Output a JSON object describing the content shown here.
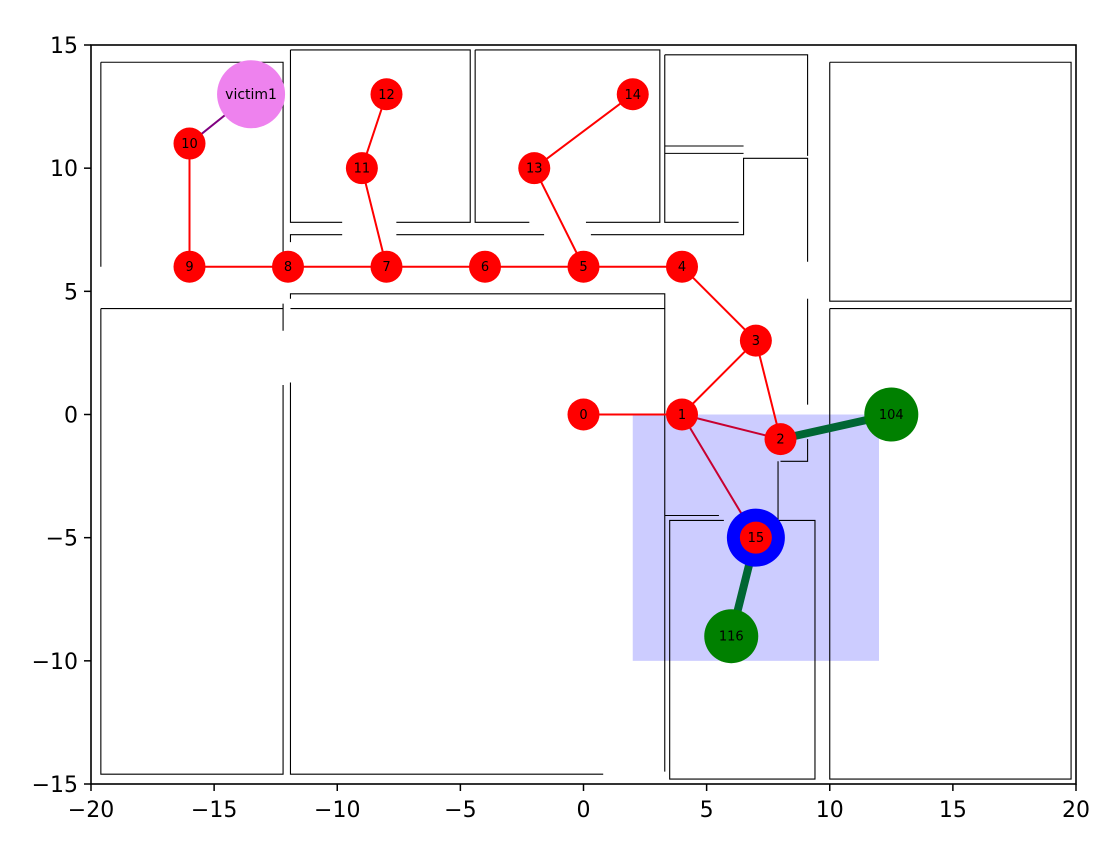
{
  "chart_data": {
    "type": "scatter",
    "title": "",
    "xlabel": "",
    "ylabel": "",
    "xlim": [
      -20,
      20
    ],
    "ylim": [
      -15,
      15
    ],
    "grid": false,
    "x_ticks": [
      -20,
      -15,
      -10,
      -5,
      0,
      5,
      10,
      15,
      20
    ],
    "y_ticks": [
      -15,
      -10,
      -5,
      0,
      5,
      10,
      15
    ],
    "x_tick_labels": [
      "−20",
      "−15",
      "−10",
      "−5",
      "0",
      "5",
      "10",
      "15",
      "20"
    ],
    "y_tick_labels": [
      "−15",
      "−10",
      "−5",
      "0",
      "5",
      "10",
      "15"
    ],
    "highlight_region": {
      "x": [
        2,
        12
      ],
      "y": [
        -10,
        0
      ],
      "color": "#ccccff"
    },
    "walls": [
      [
        [
          -19.6,
          14.3
        ],
        [
          -12.2,
          14.3
        ],
        [
          -12.2,
          6.4
        ]
      ],
      [
        [
          -12.2,
          4.5
        ],
        [
          -12.2,
          3.4
        ]
      ],
      [
        [
          -19.6,
          14.3
        ],
        [
          -19.6,
          6.0
        ]
      ],
      [
        [
          -19.6,
          4.3
        ],
        [
          -12.2,
          4.3
        ]
      ],
      [
        [
          -19.6,
          4.3
        ],
        [
          -19.6,
          -14.6
        ],
        [
          -12.2,
          -14.6
        ],
        [
          -12.2,
          1.2
        ]
      ],
      [
        [
          -11.9,
          14.8
        ],
        [
          -4.6,
          14.8
        ],
        [
          -4.6,
          7.8
        ],
        [
          -7.6,
          7.8
        ]
      ],
      [
        [
          -9.8,
          7.8
        ],
        [
          -11.9,
          7.8
        ],
        [
          -11.9,
          14.8
        ]
      ],
      [
        [
          -11.9,
          7.0
        ],
        [
          -11.9,
          7.3
        ],
        [
          -9.8,
          7.3
        ]
      ],
      [
        [
          -7.6,
          7.3
        ],
        [
          -1.6,
          7.3
        ]
      ],
      [
        [
          -11.9,
          4.7
        ],
        [
          -11.9,
          4.9
        ],
        [
          3.3,
          4.9
        ],
        [
          3.3,
          -14.5
        ]
      ],
      [
        [
          -11.9,
          4.3
        ],
        [
          3.3,
          4.3
        ]
      ],
      [
        [
          -11.9,
          1.3
        ],
        [
          -11.9,
          -14.6
        ],
        [
          0.8,
          -14.6
        ]
      ],
      [
        [
          -4.4,
          14.8
        ],
        [
          3.1,
          14.8
        ],
        [
          3.1,
          7.8
        ],
        [
          0.1,
          7.8
        ]
      ],
      [
        [
          -2.2,
          7.8
        ],
        [
          -4.4,
          7.8
        ],
        [
          -4.4,
          14.8
        ]
      ],
      [
        [
          0.3,
          7.3
        ],
        [
          6.5,
          7.3
        ],
        [
          6.5,
          10.4
        ],
        [
          9.1,
          10.4
        ],
        [
          9.1,
          6.2
        ]
      ],
      [
        [
          3.3,
          14.6
        ],
        [
          9.1,
          14.6
        ],
        [
          9.1,
          10.5
        ]
      ],
      [
        [
          3.3,
          14.6
        ],
        [
          3.3,
          7.8
        ],
        [
          6.3,
          7.8
        ]
      ],
      [
        [
          3.3,
          10.9
        ],
        [
          6.5,
          10.9
        ]
      ],
      [
        [
          3.3,
          10.6
        ],
        [
          6.5,
          10.6
        ]
      ],
      [
        [
          9.1,
          6.6
        ],
        [
          9.1,
          6.6
        ]
      ],
      [
        [
          9.1,
          4.7
        ],
        [
          9.1,
          0.4
        ]
      ],
      [
        [
          8.0,
          -1.9
        ],
        [
          9.1,
          -1.9
        ],
        [
          9.1,
          -1.0
        ]
      ],
      [
        [
          7.9,
          -1.9
        ],
        [
          7.9,
          -4.3
        ],
        [
          9.4,
          -4.3
        ],
        [
          9.4,
          -14.8
        ],
        [
          3.5,
          -14.8
        ],
        [
          3.5,
          -4.3
        ],
        [
          5.7,
          -4.3
        ]
      ],
      [
        [
          3.3,
          -4.1
        ],
        [
          5.5,
          -4.1
        ]
      ],
      [
        [
          10.0,
          14.3
        ],
        [
          19.8,
          14.3
        ],
        [
          19.8,
          4.6
        ],
        [
          10.0,
          4.6
        ],
        [
          10.0,
          14.3
        ]
      ],
      [
        [
          10.0,
          4.3
        ],
        [
          19.8,
          4.3
        ],
        [
          19.8,
          -14.8
        ],
        [
          10.0,
          -14.8
        ],
        [
          10.0,
          4.3
        ]
      ],
      [
        [
          8.6,
          -2.0
        ],
        [
          8.6,
          -2.0
        ]
      ]
    ],
    "edges": [
      {
        "from": "0",
        "to": "1",
        "color": "#ff0000",
        "width": 2
      },
      {
        "from": "1",
        "to": "3",
        "color": "#ff0000",
        "width": 2
      },
      {
        "from": "3",
        "to": "2",
        "color": "#ff0000",
        "width": 2
      },
      {
        "from": "1",
        "to": "2",
        "color": "#c80030",
        "width": 2
      },
      {
        "from": "1",
        "to": "15",
        "color": "#c80030",
        "width": 2
      },
      {
        "from": "3",
        "to": "4",
        "color": "#ff0000",
        "width": 2
      },
      {
        "from": "4",
        "to": "5",
        "color": "#ff0000",
        "width": 2
      },
      {
        "from": "5",
        "to": "6",
        "color": "#ff0000",
        "width": 2
      },
      {
        "from": "6",
        "to": "7",
        "color": "#ff0000",
        "width": 2
      },
      {
        "from": "7",
        "to": "8",
        "color": "#ff0000",
        "width": 2
      },
      {
        "from": "8",
        "to": "9",
        "color": "#ff0000",
        "width": 2
      },
      {
        "from": "9",
        "to": "10",
        "color": "#ff0000",
        "width": 2
      },
      {
        "from": "7",
        "to": "11",
        "color": "#ff0000",
        "width": 2
      },
      {
        "from": "11",
        "to": "12",
        "color": "#ff0000",
        "width": 2
      },
      {
        "from": "5",
        "to": "13",
        "color": "#ff0000",
        "width": 2
      },
      {
        "from": "13",
        "to": "14",
        "color": "#ff0000",
        "width": 2
      },
      {
        "from": "10",
        "to": "victim1",
        "color": "#800080",
        "width": 2
      },
      {
        "from": "2",
        "to": "104",
        "color": "#006633",
        "width": 8
      },
      {
        "from": "15",
        "to": "116",
        "color": "#006633",
        "width": 8
      }
    ],
    "nodes": [
      {
        "id": "0",
        "label": "0",
        "x": 0,
        "y": 0,
        "color": "#ff0000",
        "size": "small"
      },
      {
        "id": "1",
        "label": "1",
        "x": 4,
        "y": 0,
        "color": "#ff0000",
        "size": "small"
      },
      {
        "id": "2",
        "label": "2",
        "x": 8,
        "y": -1,
        "color": "#ff0000",
        "size": "small"
      },
      {
        "id": "3",
        "label": "3",
        "x": 7,
        "y": 3,
        "color": "#ff0000",
        "size": "small"
      },
      {
        "id": "4",
        "label": "4",
        "x": 4,
        "y": 6,
        "color": "#ff0000",
        "size": "small"
      },
      {
        "id": "5",
        "label": "5",
        "x": 0,
        "y": 6,
        "color": "#ff0000",
        "size": "small"
      },
      {
        "id": "6",
        "label": "6",
        "x": -4,
        "y": 6,
        "color": "#ff0000",
        "size": "small"
      },
      {
        "id": "7",
        "label": "7",
        "x": -8,
        "y": 6,
        "color": "#ff0000",
        "size": "small"
      },
      {
        "id": "8",
        "label": "8",
        "x": -12,
        "y": 6,
        "color": "#ff0000",
        "size": "small"
      },
      {
        "id": "9",
        "label": "9",
        "x": -16,
        "y": 6,
        "color": "#ff0000",
        "size": "small"
      },
      {
        "id": "10",
        "label": "10",
        "x": -16,
        "y": 11,
        "color": "#ff0000",
        "size": "small"
      },
      {
        "id": "11",
        "label": "11",
        "x": -9,
        "y": 10,
        "color": "#ff0000",
        "size": "small"
      },
      {
        "id": "12",
        "label": "12",
        "x": -8,
        "y": 13,
        "color": "#ff0000",
        "size": "small"
      },
      {
        "id": "13",
        "label": "13",
        "x": -2,
        "y": 10,
        "color": "#ff0000",
        "size": "small"
      },
      {
        "id": "14",
        "label": "14",
        "x": 2,
        "y": 13,
        "color": "#ff0000",
        "size": "small"
      },
      {
        "id": "15",
        "label": "15",
        "x": 7,
        "y": -5,
        "color": "#ff0000",
        "size": "small",
        "ring": "#0000ff"
      },
      {
        "id": "104",
        "label": "104",
        "x": 12.5,
        "y": 0,
        "color": "#008000",
        "size": "large"
      },
      {
        "id": "116",
        "label": "116",
        "x": 6,
        "y": -9,
        "color": "#008000",
        "size": "large"
      },
      {
        "id": "victim1",
        "label": "victim1",
        "x": -13.5,
        "y": 13,
        "color": "#ee82ee",
        "size": "xlarge"
      }
    ]
  }
}
